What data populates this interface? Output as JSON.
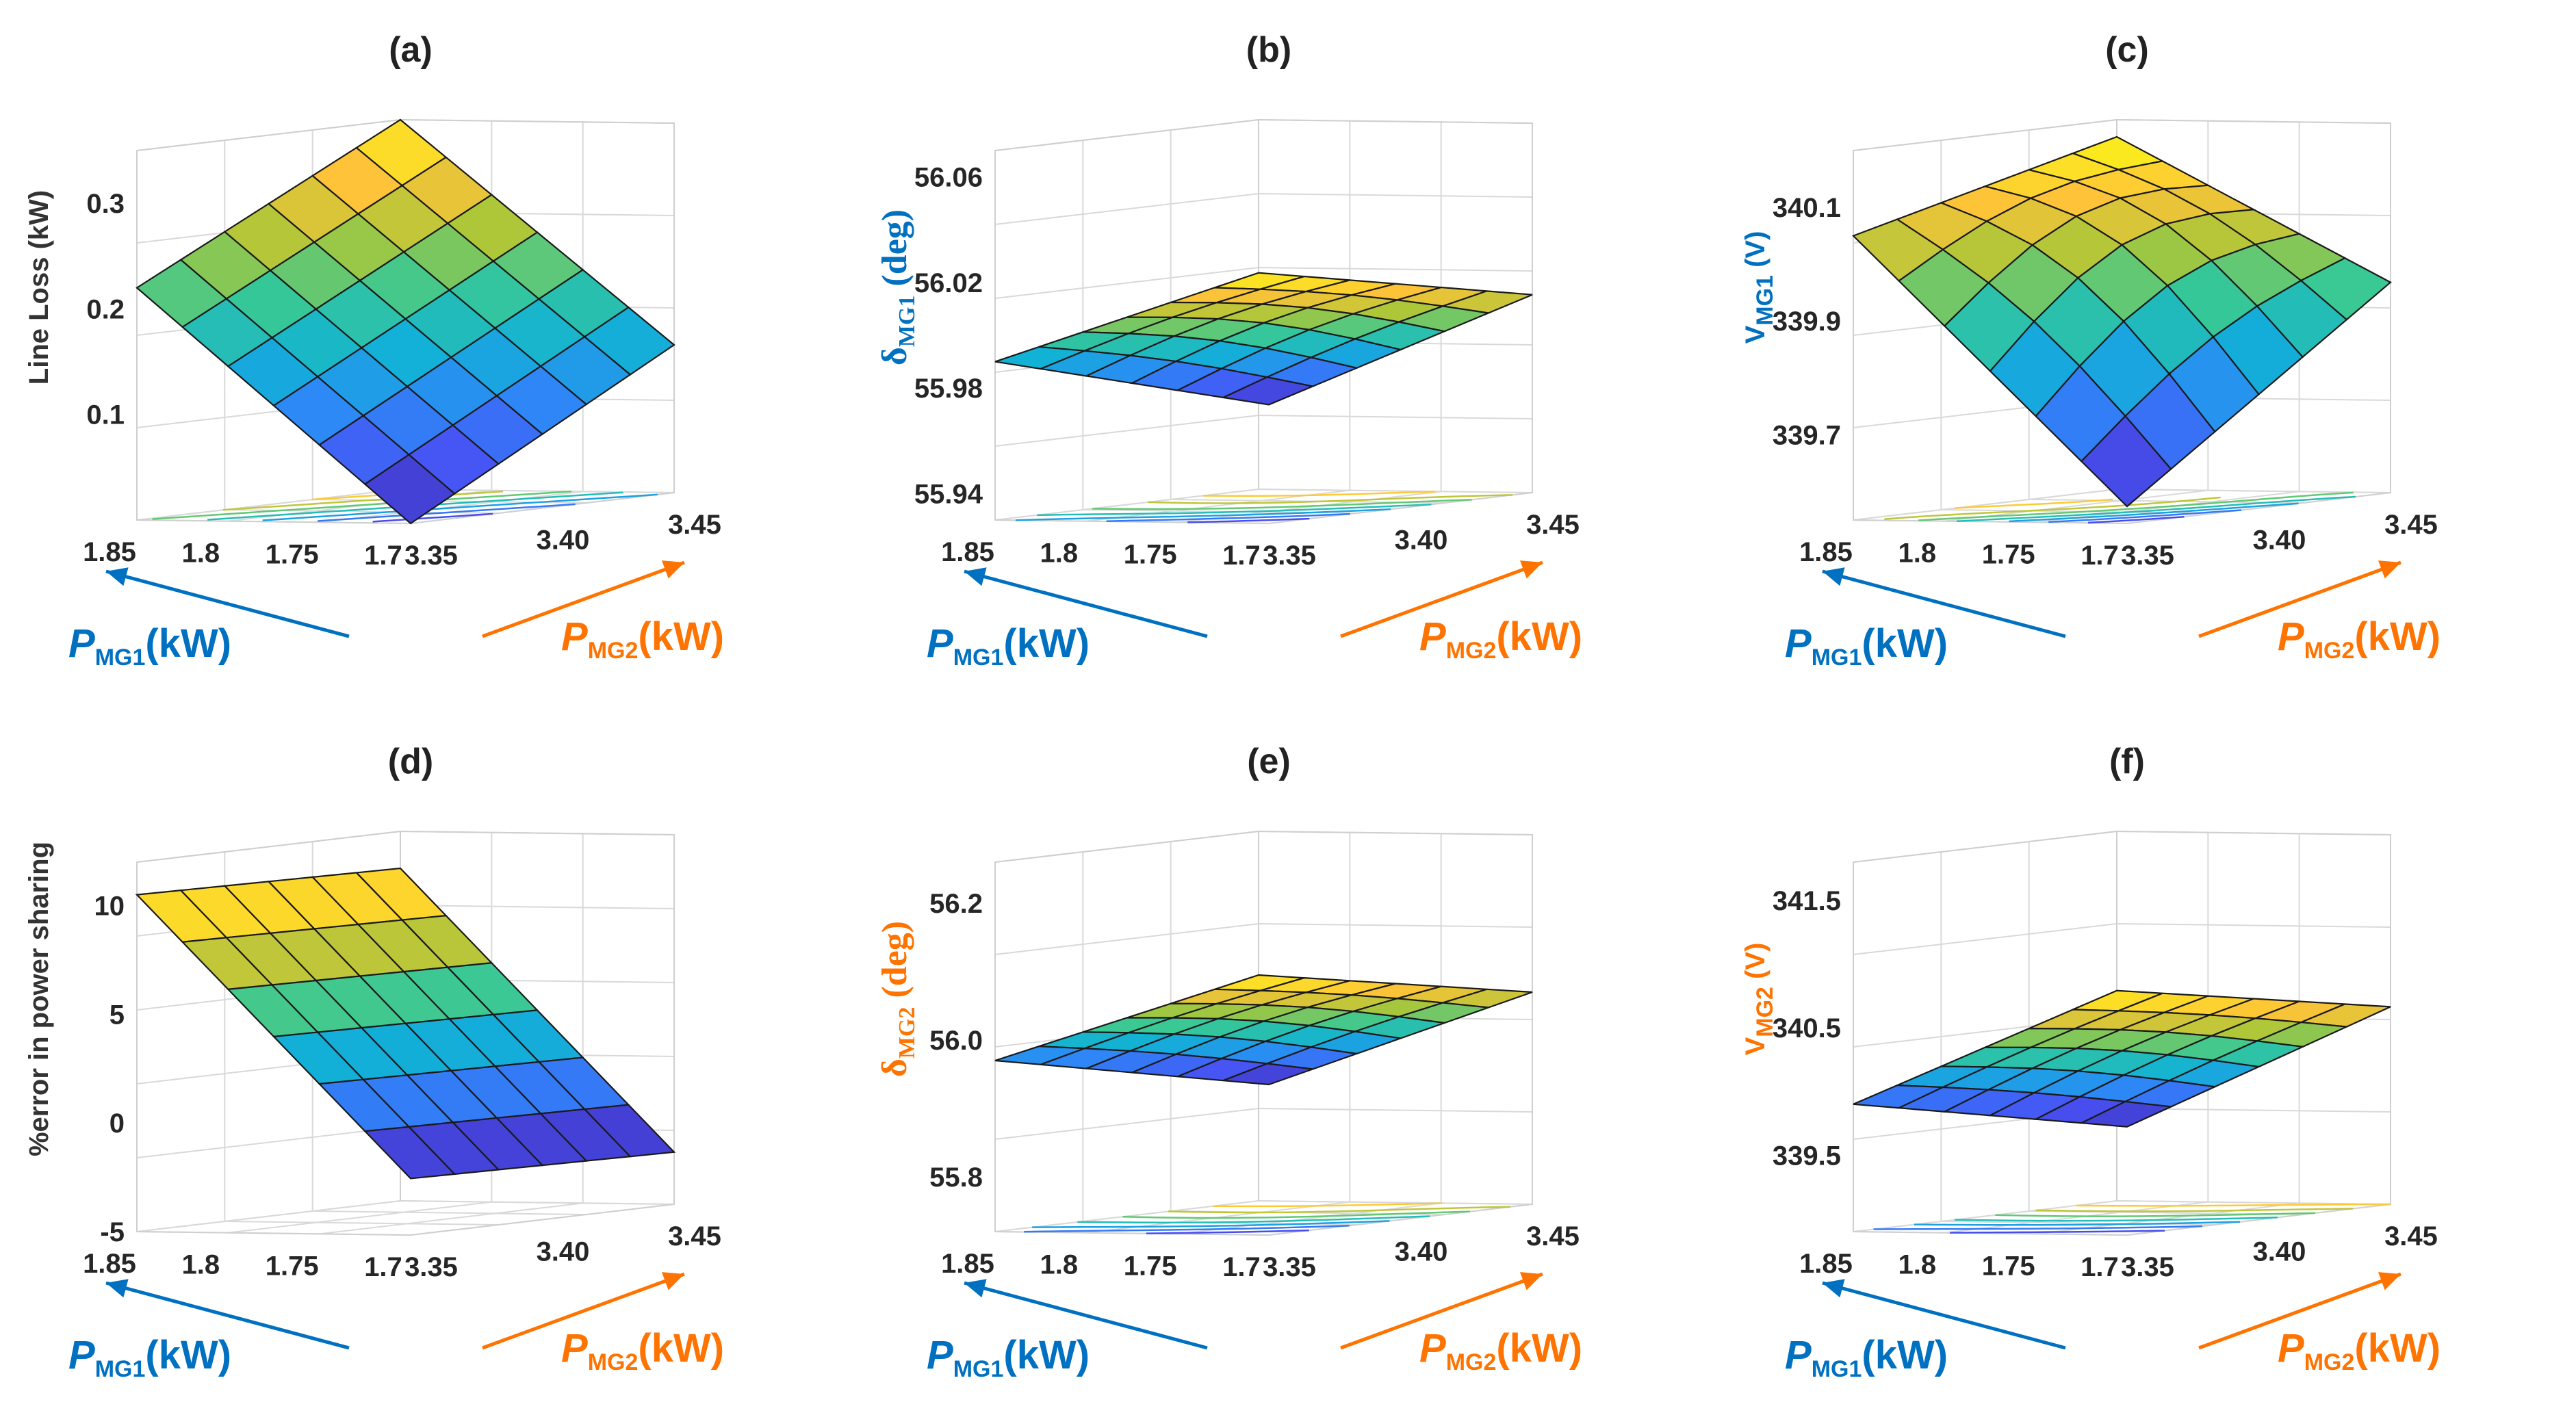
{
  "colors": {
    "blue_axis": "#0070c0",
    "orange_axis": "#ff7300",
    "title": "#222222"
  },
  "chart_data": [
    {
      "id": "a",
      "type": "surface3d",
      "title": "(a)",
      "zlabel": {
        "text": "Line Loss (kW)",
        "sub": "",
        "color": "#333333",
        "serif": false
      },
      "x": {
        "label": "P",
        "sub": "MG1",
        "unit": "(kW)",
        "color": "#0070c0",
        "ticks": [
          "1.85",
          "1.8",
          "1.75",
          "1.7"
        ],
        "range": [
          1.7,
          1.85
        ]
      },
      "y": {
        "label": "P",
        "sub": "MG2",
        "unit": "(kW)",
        "color": "#ff7300",
        "ticks": [
          "3.35",
          "3.40",
          "3.45"
        ],
        "range": [
          3.35,
          3.45
        ]
      },
      "zticks": [
        "0.1",
        "0.2",
        "0.3"
      ],
      "zlim": [
        0,
        0.35
      ],
      "corners": {
        "x_high_y_low": 0.22,
        "x_high_y_high": 0.35,
        "x_low_y_low": 0.0,
        "x_low_y_high": 0.14
      },
      "curvature": 0.0
    },
    {
      "id": "b",
      "type": "surface3d",
      "title": "(b)",
      "zlabel": {
        "text": "δ",
        "sub": "MG1",
        "unit": " (deg)",
        "color": "#0070c0",
        "serif": true
      },
      "x": {
        "label": "P",
        "sub": "MG1",
        "unit": "(kW)",
        "color": "#0070c0",
        "ticks": [
          "1.85",
          "1.8",
          "1.75",
          "1.7"
        ],
        "range": [
          1.7,
          1.85
        ]
      },
      "y": {
        "label": "P",
        "sub": "MG2",
        "unit": "(kW)",
        "color": "#ff7300",
        "ticks": [
          "3.35",
          "3.40",
          "3.45"
        ],
        "range": [
          3.35,
          3.45
        ]
      },
      "zticks": [
        "55.94",
        "55.98",
        "56.02",
        "56.06"
      ],
      "zlim": [
        55.93,
        56.07
      ],
      "corners": {
        "x_high_y_low": 55.99,
        "x_high_y_high": 56.012,
        "x_low_y_low": 55.975,
        "x_low_y_high": 56.005
      },
      "curvature": 0.004
    },
    {
      "id": "c",
      "type": "surface3d",
      "title": "(c)",
      "zlabel": {
        "text": "V",
        "sub": "MG1",
        "unit": " (V)",
        "color": "#0070c0",
        "serif": false
      },
      "x": {
        "label": "P",
        "sub": "MG1",
        "unit": "(kW)",
        "color": "#0070c0",
        "ticks": [
          "1.85",
          "1.8",
          "1.75",
          "1.7"
        ],
        "range": [
          1.7,
          1.85
        ]
      },
      "y": {
        "label": "P",
        "sub": "MG2",
        "unit": "(kW)",
        "color": "#ff7300",
        "ticks": [
          "3.35",
          "3.40",
          "3.45"
        ],
        "range": [
          3.35,
          3.45
        ]
      },
      "zticks": [
        "339.7",
        "339.9",
        "340.1"
      ],
      "zlim": [
        339.55,
        340.2
      ],
      "corners": {
        "x_high_y_low": 340.05,
        "x_high_y_high": 340.17,
        "x_low_y_low": 339.58,
        "x_low_y_high": 339.92
      },
      "curvature": 0.08
    },
    {
      "id": "d",
      "type": "surface3d",
      "title": "(d)",
      "zlabel": {
        "text": "%error in power sharing",
        "sub": "",
        "color": "#333333",
        "serif": false
      },
      "x": {
        "label": "P",
        "sub": "MG1",
        "unit": "(kW)",
        "color": "#0070c0",
        "ticks": [
          "1.85",
          "1.8",
          "1.75",
          "1.7"
        ],
        "range": [
          1.7,
          1.85
        ]
      },
      "y": {
        "label": "P",
        "sub": "MG2",
        "unit": "(kW)",
        "color": "#ff7300",
        "ticks": [
          "3.35",
          "3.40",
          "3.45"
        ],
        "range": [
          3.35,
          3.45
        ]
      },
      "zticks": [
        "-5",
        "0",
        "5",
        "10"
      ],
      "zlim": [
        -5,
        12
      ],
      "corners": {
        "x_high_y_low": 10.5,
        "x_high_y_high": 10.3,
        "x_low_y_low": -2.4,
        "x_low_y_high": -2.6
      },
      "curvature": 0.0
    },
    {
      "id": "e",
      "type": "surface3d",
      "title": "(e)",
      "zlabel": {
        "text": "δ",
        "sub": "MG2",
        "unit": " (deg)",
        "color": "#ff7300",
        "serif": true
      },
      "x": {
        "label": "P",
        "sub": "MG1",
        "unit": "(kW)",
        "color": "#0070c0",
        "ticks": [
          "1.85",
          "1.8",
          "1.75",
          "1.7"
        ],
        "range": [
          1.7,
          1.85
        ]
      },
      "y": {
        "label": "P",
        "sub": "MG2",
        "unit": "(kW)",
        "color": "#ff7300",
        "ticks": [
          "3.35",
          "3.40",
          "3.45"
        ],
        "range": [
          3.35,
          3.45
        ]
      },
      "zticks": [
        "55.8",
        "56.0",
        "56.2"
      ],
      "zlim": [
        55.72,
        56.26
      ],
      "corners": {
        "x_high_y_low": 55.97,
        "x_high_y_high": 56.05,
        "x_low_y_low": 55.94,
        "x_low_y_high": 56.03
      },
      "curvature": 0.01
    },
    {
      "id": "f",
      "type": "surface3d",
      "title": "(f)",
      "zlabel": {
        "text": "V",
        "sub": "MG2",
        "unit": " (V)",
        "color": "#ff7300",
        "serif": false
      },
      "x": {
        "label": "P",
        "sub": "MG1",
        "unit": "(kW)",
        "color": "#0070c0",
        "ticks": [
          "1.85",
          "1.8",
          "1.75",
          "1.7"
        ],
        "range": [
          1.7,
          1.85
        ]
      },
      "y": {
        "label": "P",
        "sub": "MG2",
        "unit": "(kW)",
        "color": "#ff7300",
        "ticks": [
          "3.35",
          "3.40",
          "3.45"
        ],
        "range": [
          3.35,
          3.45
        ]
      },
      "zticks": [
        "339.5",
        "340.5",
        "341.5"
      ],
      "zlim": [
        338.9,
        341.8
      ],
      "corners": {
        "x_high_y_low": 339.9,
        "x_high_y_high": 340.55,
        "x_low_y_low": 339.75,
        "x_low_y_high": 340.45
      },
      "curvature": 0.05
    }
  ]
}
